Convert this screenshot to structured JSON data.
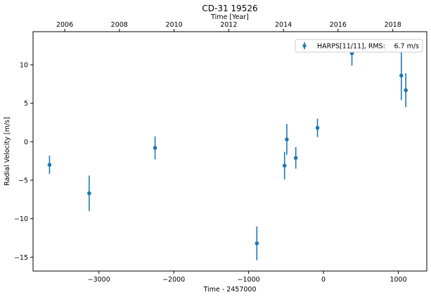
{
  "chart_data": {
    "type": "scatter",
    "title": "CD-31 19526",
    "xlabel": "Time - 2457000",
    "ylabel": "Radial Velocity [m/s]",
    "top_xlabel": "Time [Year]",
    "xlim": [
      -3880,
      1380
    ],
    "ylim": [
      -16.8,
      14.3
    ],
    "x_ticks": [
      -3000,
      -2000,
      -1000,
      0,
      1000
    ],
    "x_tick_labels": [
      "−3000",
      "−2000",
      "−1000",
      "0",
      "1000"
    ],
    "y_ticks": [
      -15,
      -10,
      -5,
      0,
      5,
      10
    ],
    "y_tick_labels": [
      "−15",
      "−10",
      "−5",
      "0",
      "5",
      "10"
    ],
    "top_ticks": [
      {
        "label": "2006",
        "x": -3457
      },
      {
        "label": "2008",
        "x": -2727
      },
      {
        "label": "2010",
        "x": -1996
      },
      {
        "label": "2012",
        "x": -1266
      },
      {
        "label": "2014",
        "x": -535
      },
      {
        "label": "2016",
        "x": 195
      },
      {
        "label": "2018",
        "x": 926
      }
    ],
    "grid": false,
    "legend_position": "top-right",
    "color": "#1f77b4",
    "series": [
      {
        "name": "HARPS[11/11], RMS:",
        "rms": "6.7 m/s",
        "x": [
          -3660,
          -3130,
          -2250,
          -890,
          -520,
          -490,
          -370,
          -80,
          380,
          1040,
          1100
        ],
        "y": [
          -3.0,
          -6.7,
          -0.8,
          -13.2,
          -3.1,
          0.3,
          -2.1,
          1.8,
          11.5,
          8.6,
          6.7
        ],
        "err": [
          1.2,
          2.3,
          1.5,
          2.2,
          1.8,
          2.0,
          1.4,
          1.2,
          1.6,
          3.2,
          2.2
        ]
      }
    ]
  }
}
